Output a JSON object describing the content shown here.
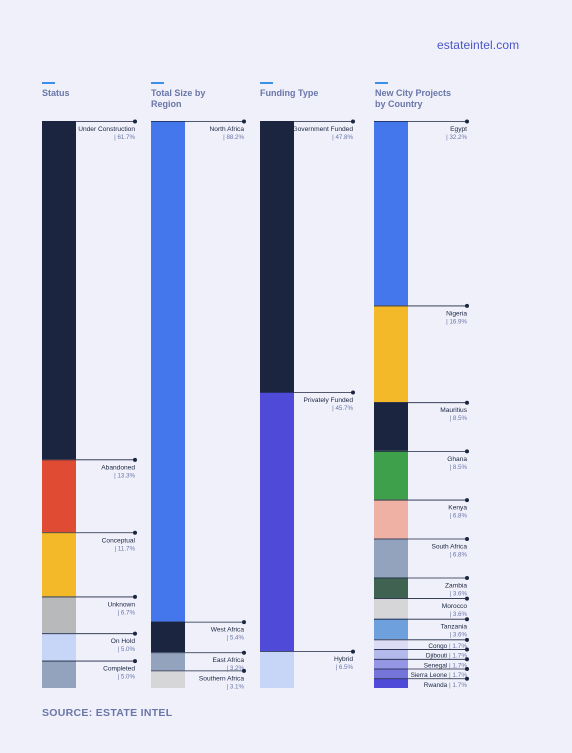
{
  "brand": "estateintel.com",
  "source": "SOURCE: ESTATE INTEL",
  "chart_data": [
    {
      "type": "bar",
      "title": "Status",
      "title_lines": [
        "Status"
      ],
      "categories": [
        "Under Construction",
        "Abandoned",
        "Conceptual",
        "Unknown",
        "On Hold",
        "Completed"
      ],
      "labels": [
        "| 61.7%",
        "| 13.3%",
        "| 11.7%",
        "| 6.7%",
        "| 5.0%",
        "| 5.0%"
      ],
      "values": [
        61.7,
        13.3,
        11.7,
        6.7,
        5.0,
        5.0
      ],
      "colors": [
        "#1b2540",
        "#e04b34",
        "#f4b928",
        "#b8b9bb",
        "#c7d5f7",
        "#93a2bd"
      ]
    },
    {
      "type": "bar",
      "title": "Total Size by Region",
      "title_lines": [
        "Total Size by",
        "Region"
      ],
      "categories": [
        "North Africa",
        "West Africa",
        "East Africa",
        "Southern Africa"
      ],
      "labels": [
        "| 88.2%",
        "| 5.4%",
        "| 3.2%",
        "| 3.1%"
      ],
      "values": [
        88.2,
        5.4,
        3.2,
        3.1
      ],
      "colors": [
        "#4476ec",
        "#1b2540",
        "#93a2bd",
        "#d6d6d8"
      ]
    },
    {
      "type": "bar",
      "title": "Funding Type",
      "title_lines": [
        "Funding Type"
      ],
      "categories": [
        "Government Funded",
        "Privately Funded",
        "Hybrid"
      ],
      "labels": [
        "| 47.8%",
        "| 45.7%",
        "| 6.5%"
      ],
      "values": [
        47.8,
        45.7,
        6.5
      ],
      "colors": [
        "#1b2540",
        "#4f4bd8",
        "#c7d5f7"
      ]
    },
    {
      "type": "bar",
      "title": "New City Projects by Country",
      "title_lines": [
        "New City Projects",
        "by Country"
      ],
      "categories": [
        "Egypt",
        "Nigeria",
        "Mauritius",
        "Ghana",
        "Kenya",
        "South Africa",
        "Zambia",
        "Morocco",
        "Tanzania",
        "Congo",
        "Djibouti",
        "Senegal",
        "Sierra Leone",
        "Rwanda"
      ],
      "labels": [
        "| 32.2%",
        "| 16.9%",
        "| 8.5%",
        "| 8.5%",
        "| 6.8%",
        "| 6.8%",
        "| 3.6%",
        "| 3.6%",
        "| 3.6%",
        "| 1.7%",
        "| 1.7%",
        "| 1.7%",
        "| 1.7%",
        "| 1.7%"
      ],
      "inline": [
        false,
        false,
        false,
        false,
        false,
        false,
        false,
        false,
        false,
        true,
        true,
        true,
        true,
        true
      ],
      "values": [
        32.2,
        16.9,
        8.5,
        8.5,
        6.8,
        6.8,
        3.6,
        3.6,
        3.6,
        1.7,
        1.7,
        1.7,
        1.7,
        1.7
      ],
      "colors": [
        "#4476ec",
        "#f4b928",
        "#1b2540",
        "#3fa04c",
        "#efb1a4",
        "#93a2bd",
        "#3f6350",
        "#d6d6d8",
        "#6ea0dd",
        "#dcddf5",
        "#b4b9ec",
        "#9596e4",
        "#7575d9",
        "#4f4bd8"
      ]
    }
  ]
}
